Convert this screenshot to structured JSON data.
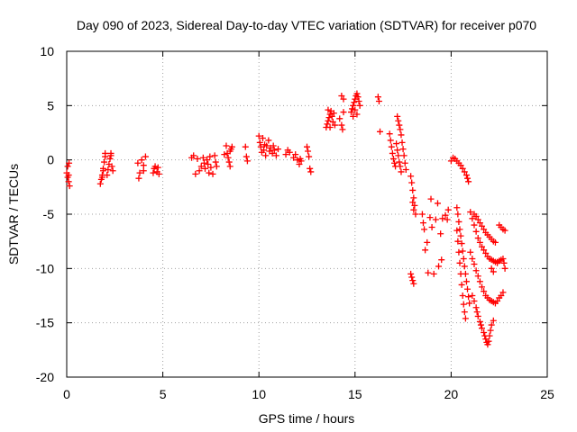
{
  "chart_data": {
    "type": "scatter",
    "title": "Day 090 of 2023, Sidereal Day-to-day VTEC variation (SDTVAR) for receiver p070",
    "xlabel": "GPS time / hours",
    "ylabel": "SDTVAR / TECUs",
    "xlim": [
      0,
      25
    ],
    "ylim": [
      -20,
      10
    ],
    "xticks": [
      "0",
      "5",
      "10",
      "15",
      "20",
      "25"
    ],
    "yticks": [
      "10",
      "5",
      "0",
      "-5",
      "-10",
      "-15",
      "-20"
    ],
    "xtick_values": [
      0,
      5,
      10,
      15,
      20,
      25
    ],
    "ytick_values": [
      10,
      5,
      0,
      -5,
      -10,
      -15,
      -20
    ],
    "grid": true,
    "marker": "plus",
    "marker_color": "#ff0000",
    "series": [
      {
        "name": "SDTVAR",
        "points": [
          [
            0.0,
            -1.2
          ],
          [
            0.05,
            -1.6
          ],
          [
            0.1,
            -2.0
          ],
          [
            0.15,
            -2.4
          ],
          [
            0.1,
            -1.4
          ],
          [
            0.05,
            -0.6
          ],
          [
            0.12,
            -0.3
          ],
          [
            1.75,
            -2.2
          ],
          [
            1.8,
            -1.8
          ],
          [
            1.85,
            -1.4
          ],
          [
            1.9,
            -0.8
          ],
          [
            1.95,
            -0.2
          ],
          [
            2.0,
            0.3
          ],
          [
            2.0,
            0.6
          ],
          [
            1.9,
            -1.0
          ],
          [
            1.85,
            -1.6
          ],
          [
            2.1,
            -1.4
          ],
          [
            2.15,
            -0.9
          ],
          [
            2.2,
            -0.4
          ],
          [
            2.25,
            0.1
          ],
          [
            2.3,
            0.6
          ],
          [
            2.35,
            -0.6
          ],
          [
            2.4,
            -1.0
          ],
          [
            2.3,
            0.4
          ],
          [
            3.7,
            -0.3
          ],
          [
            3.8,
            -1.2
          ],
          [
            3.75,
            -1.7
          ],
          [
            3.9,
            0.0
          ],
          [
            4.0,
            -0.5
          ],
          [
            4.1,
            0.3
          ],
          [
            4.0,
            -1.0
          ],
          [
            4.5,
            -1.2
          ],
          [
            4.55,
            -0.8
          ],
          [
            4.6,
            -0.6
          ],
          [
            4.7,
            -1.1
          ],
          [
            4.75,
            -0.7
          ],
          [
            4.8,
            -1.3
          ],
          [
            6.5,
            0.2
          ],
          [
            6.6,
            0.4
          ],
          [
            6.7,
            -1.3
          ],
          [
            6.8,
            0.1
          ],
          [
            6.9,
            -1.0
          ],
          [
            7.0,
            -0.6
          ],
          [
            7.1,
            0.2
          ],
          [
            7.15,
            -0.3
          ],
          [
            7.2,
            -0.8
          ],
          [
            7.3,
            0.0
          ],
          [
            7.35,
            -0.4
          ],
          [
            7.4,
            -1.2
          ],
          [
            7.45,
            0.3
          ],
          [
            7.5,
            -0.7
          ],
          [
            7.6,
            -1.3
          ],
          [
            7.7,
            0.4
          ],
          [
            7.75,
            -0.2
          ],
          [
            7.8,
            -0.6
          ],
          [
            8.2,
            0.5
          ],
          [
            8.3,
            1.3
          ],
          [
            8.35,
            0.6
          ],
          [
            8.4,
            0.2
          ],
          [
            8.45,
            -0.2
          ],
          [
            8.5,
            0.8
          ],
          [
            8.55,
            1.0
          ],
          [
            8.5,
            -0.6
          ],
          [
            8.6,
            1.2
          ],
          [
            9.3,
            1.2
          ],
          [
            9.35,
            0.3
          ],
          [
            9.4,
            -0.1
          ],
          [
            10.0,
            2.2
          ],
          [
            10.05,
            1.6
          ],
          [
            10.1,
            1.2
          ],
          [
            10.15,
            0.7
          ],
          [
            10.2,
            2.0
          ],
          [
            10.25,
            0.9
          ],
          [
            10.3,
            1.4
          ],
          [
            10.35,
            0.4
          ],
          [
            10.4,
            1.3
          ],
          [
            10.5,
            1.8
          ],
          [
            10.55,
            0.8
          ],
          [
            10.6,
            1.1
          ],
          [
            10.7,
            0.6
          ],
          [
            10.75,
            1.3
          ],
          [
            10.8,
            0.9
          ],
          [
            10.9,
            0.4
          ],
          [
            11.0,
            1.0
          ],
          [
            11.4,
            0.5
          ],
          [
            11.5,
            0.9
          ],
          [
            11.6,
            0.7
          ],
          [
            11.8,
            0.2
          ],
          [
            11.9,
            0.5
          ],
          [
            12.0,
            0.0
          ],
          [
            12.1,
            -0.4
          ],
          [
            12.15,
            0.1
          ],
          [
            12.2,
            -0.1
          ],
          [
            12.5,
            1.2
          ],
          [
            12.55,
            0.8
          ],
          [
            12.6,
            0.3
          ],
          [
            12.65,
            -0.8
          ],
          [
            12.7,
            -1.1
          ],
          [
            13.5,
            3.0
          ],
          [
            13.55,
            3.3
          ],
          [
            13.6,
            3.6
          ],
          [
            13.65,
            3.9
          ],
          [
            13.7,
            4.2
          ],
          [
            13.75,
            4.5
          ],
          [
            13.8,
            4.0
          ],
          [
            13.85,
            3.5
          ],
          [
            13.9,
            4.3
          ],
          [
            13.95,
            3.2
          ],
          [
            13.6,
            4.6
          ],
          [
            13.7,
            3.0
          ],
          [
            14.2,
            3.8
          ],
          [
            14.3,
            3.2
          ],
          [
            14.35,
            2.8
          ],
          [
            14.4,
            4.4
          ],
          [
            14.3,
            5.9
          ],
          [
            14.4,
            5.6
          ],
          [
            14.8,
            4.4
          ],
          [
            14.85,
            4.7
          ],
          [
            14.9,
            5.0
          ],
          [
            14.95,
            5.3
          ],
          [
            15.0,
            5.6
          ],
          [
            15.05,
            5.9
          ],
          [
            15.1,
            6.1
          ],
          [
            15.15,
            5.8
          ],
          [
            15.2,
            5.4
          ],
          [
            15.25,
            5.0
          ],
          [
            15.0,
            4.6
          ],
          [
            15.1,
            4.2
          ],
          [
            14.9,
            4.0
          ],
          [
            16.2,
            5.8
          ],
          [
            16.25,
            5.4
          ],
          [
            16.3,
            2.6
          ],
          [
            16.8,
            2.4
          ],
          [
            16.85,
            1.8
          ],
          [
            16.9,
            1.2
          ],
          [
            16.95,
            0.6
          ],
          [
            17.0,
            0.1
          ],
          [
            17.05,
            -0.3
          ],
          [
            17.1,
            -0.6
          ],
          [
            17.15,
            1.5
          ],
          [
            17.2,
            0.9
          ],
          [
            17.25,
            0.4
          ],
          [
            17.3,
            -0.2
          ],
          [
            17.35,
            -0.6
          ],
          [
            17.4,
            -1.1
          ],
          [
            17.2,
            4.0
          ],
          [
            17.25,
            3.6
          ],
          [
            17.3,
            3.2
          ],
          [
            17.35,
            2.8
          ],
          [
            17.4,
            2.3
          ],
          [
            17.45,
            1.6
          ],
          [
            17.5,
            1.0
          ],
          [
            17.55,
            0.4
          ],
          [
            17.6,
            -0.3
          ],
          [
            17.65,
            -0.9
          ],
          [
            17.9,
            -1.5
          ],
          [
            17.95,
            -2.1
          ],
          [
            18.0,
            -2.8
          ],
          [
            18.05,
            -3.5
          ],
          [
            18.1,
            -4.2
          ],
          [
            18.15,
            -5.0
          ],
          [
            18.0,
            -3.9
          ],
          [
            18.05,
            -4.6
          ],
          [
            17.9,
            -10.5
          ],
          [
            17.95,
            -10.8
          ],
          [
            18.0,
            -11.1
          ],
          [
            18.05,
            -11.4
          ],
          [
            18.5,
            -5.0
          ],
          [
            18.55,
            -5.8
          ],
          [
            18.6,
            -6.4
          ],
          [
            18.65,
            -8.3
          ],
          [
            18.75,
            -7.6
          ],
          [
            18.8,
            -10.4
          ],
          [
            18.9,
            -5.3
          ],
          [
            19.0,
            -6.2
          ],
          [
            18.95,
            -3.6
          ],
          [
            19.1,
            -10.5
          ],
          [
            19.2,
            -5.5
          ],
          [
            19.3,
            -4.0
          ],
          [
            19.35,
            -9.8
          ],
          [
            19.45,
            -6.8
          ],
          [
            19.5,
            -9.2
          ],
          [
            19.55,
            -5.4
          ],
          [
            19.7,
            -5.1
          ],
          [
            19.8,
            -5.5
          ],
          [
            19.85,
            -4.6
          ],
          [
            20.0,
            -0.1
          ],
          [
            20.1,
            0.2
          ],
          [
            20.2,
            0.1
          ],
          [
            20.3,
            -0.1
          ],
          [
            20.4,
            -0.3
          ],
          [
            20.5,
            -0.5
          ],
          [
            20.6,
            -0.8
          ],
          [
            20.7,
            -1.1
          ],
          [
            20.8,
            -1.4
          ],
          [
            20.85,
            -1.7
          ],
          [
            20.9,
            -2.0
          ],
          [
            20.3,
            -4.4
          ],
          [
            20.35,
            -5.0
          ],
          [
            20.4,
            -5.7
          ],
          [
            20.45,
            -6.4
          ],
          [
            20.5,
            -7.0
          ],
          [
            20.55,
            -7.7
          ],
          [
            20.6,
            -8.4
          ],
          [
            20.65,
            -9.1
          ],
          [
            20.7,
            -9.8
          ],
          [
            20.75,
            -10.5
          ],
          [
            20.8,
            -11.2
          ],
          [
            20.85,
            -11.9
          ],
          [
            20.9,
            -12.6
          ],
          [
            20.95,
            -13.2
          ],
          [
            20.3,
            -6.5
          ],
          [
            20.35,
            -7.5
          ],
          [
            20.4,
            -8.5
          ],
          [
            20.45,
            -9.5
          ],
          [
            20.5,
            -10.5
          ],
          [
            20.55,
            -11.5
          ],
          [
            20.6,
            -12.5
          ],
          [
            20.65,
            -13.3
          ],
          [
            20.7,
            -14.0
          ],
          [
            20.75,
            -14.6
          ],
          [
            21.0,
            -4.8
          ],
          [
            21.1,
            -5.4
          ],
          [
            21.2,
            -6.0
          ],
          [
            21.3,
            -6.6
          ],
          [
            21.4,
            -7.2
          ],
          [
            21.5,
            -7.6
          ],
          [
            21.6,
            -8.0
          ],
          [
            21.7,
            -8.3
          ],
          [
            21.8,
            -8.6
          ],
          [
            21.9,
            -8.9
          ],
          [
            22.0,
            -9.1
          ],
          [
            22.1,
            -9.2
          ],
          [
            22.2,
            -9.3
          ],
          [
            22.3,
            -9.4
          ],
          [
            22.4,
            -9.4
          ],
          [
            22.5,
            -9.3
          ],
          [
            22.6,
            -9.2
          ],
          [
            22.7,
            -9.1
          ],
          [
            21.2,
            -5.0
          ],
          [
            21.3,
            -5.2
          ],
          [
            21.4,
            -5.5
          ],
          [
            21.5,
            -5.8
          ],
          [
            21.6,
            -6.1
          ],
          [
            21.7,
            -6.4
          ],
          [
            21.8,
            -6.7
          ],
          [
            21.9,
            -6.9
          ],
          [
            22.0,
            -7.1
          ],
          [
            22.1,
            -7.3
          ],
          [
            22.2,
            -7.5
          ],
          [
            22.3,
            -7.6
          ],
          [
            21.0,
            -8.5
          ],
          [
            21.1,
            -9.1
          ],
          [
            21.2,
            -9.6
          ],
          [
            21.3,
            -10.2
          ],
          [
            21.4,
            -10.7
          ],
          [
            21.5,
            -11.2
          ],
          [
            21.6,
            -11.7
          ],
          [
            21.7,
            -12.1
          ],
          [
            21.8,
            -12.5
          ],
          [
            21.9,
            -12.7
          ],
          [
            22.0,
            -12.9
          ],
          [
            22.1,
            -13.0
          ],
          [
            22.2,
            -13.1
          ],
          [
            22.3,
            -13.2
          ],
          [
            22.4,
            -13.0
          ],
          [
            22.5,
            -12.7
          ],
          [
            22.6,
            -12.5
          ],
          [
            22.7,
            -12.2
          ],
          [
            21.1,
            -12.5
          ],
          [
            21.2,
            -13.0
          ],
          [
            21.3,
            -13.6
          ],
          [
            21.35,
            -14.0
          ],
          [
            21.4,
            -14.4
          ],
          [
            21.5,
            -14.9
          ],
          [
            21.55,
            -15.2
          ],
          [
            21.6,
            -15.5
          ],
          [
            21.7,
            -15.9
          ],
          [
            21.75,
            -16.2
          ],
          [
            21.8,
            -16.5
          ],
          [
            21.85,
            -16.8
          ],
          [
            21.9,
            -17.0
          ],
          [
            21.95,
            -16.7
          ],
          [
            22.0,
            -16.2
          ],
          [
            22.05,
            -15.7
          ],
          [
            22.1,
            -15.2
          ],
          [
            22.2,
            -14.8
          ],
          [
            22.1,
            -10.0
          ],
          [
            22.2,
            -10.3
          ],
          [
            22.4,
            -9.5
          ],
          [
            22.5,
            -6.0
          ],
          [
            22.6,
            -6.2
          ],
          [
            22.7,
            -6.4
          ],
          [
            22.8,
            -6.5
          ],
          [
            22.75,
            -9.5
          ],
          [
            22.8,
            -10.0
          ]
        ]
      }
    ]
  }
}
